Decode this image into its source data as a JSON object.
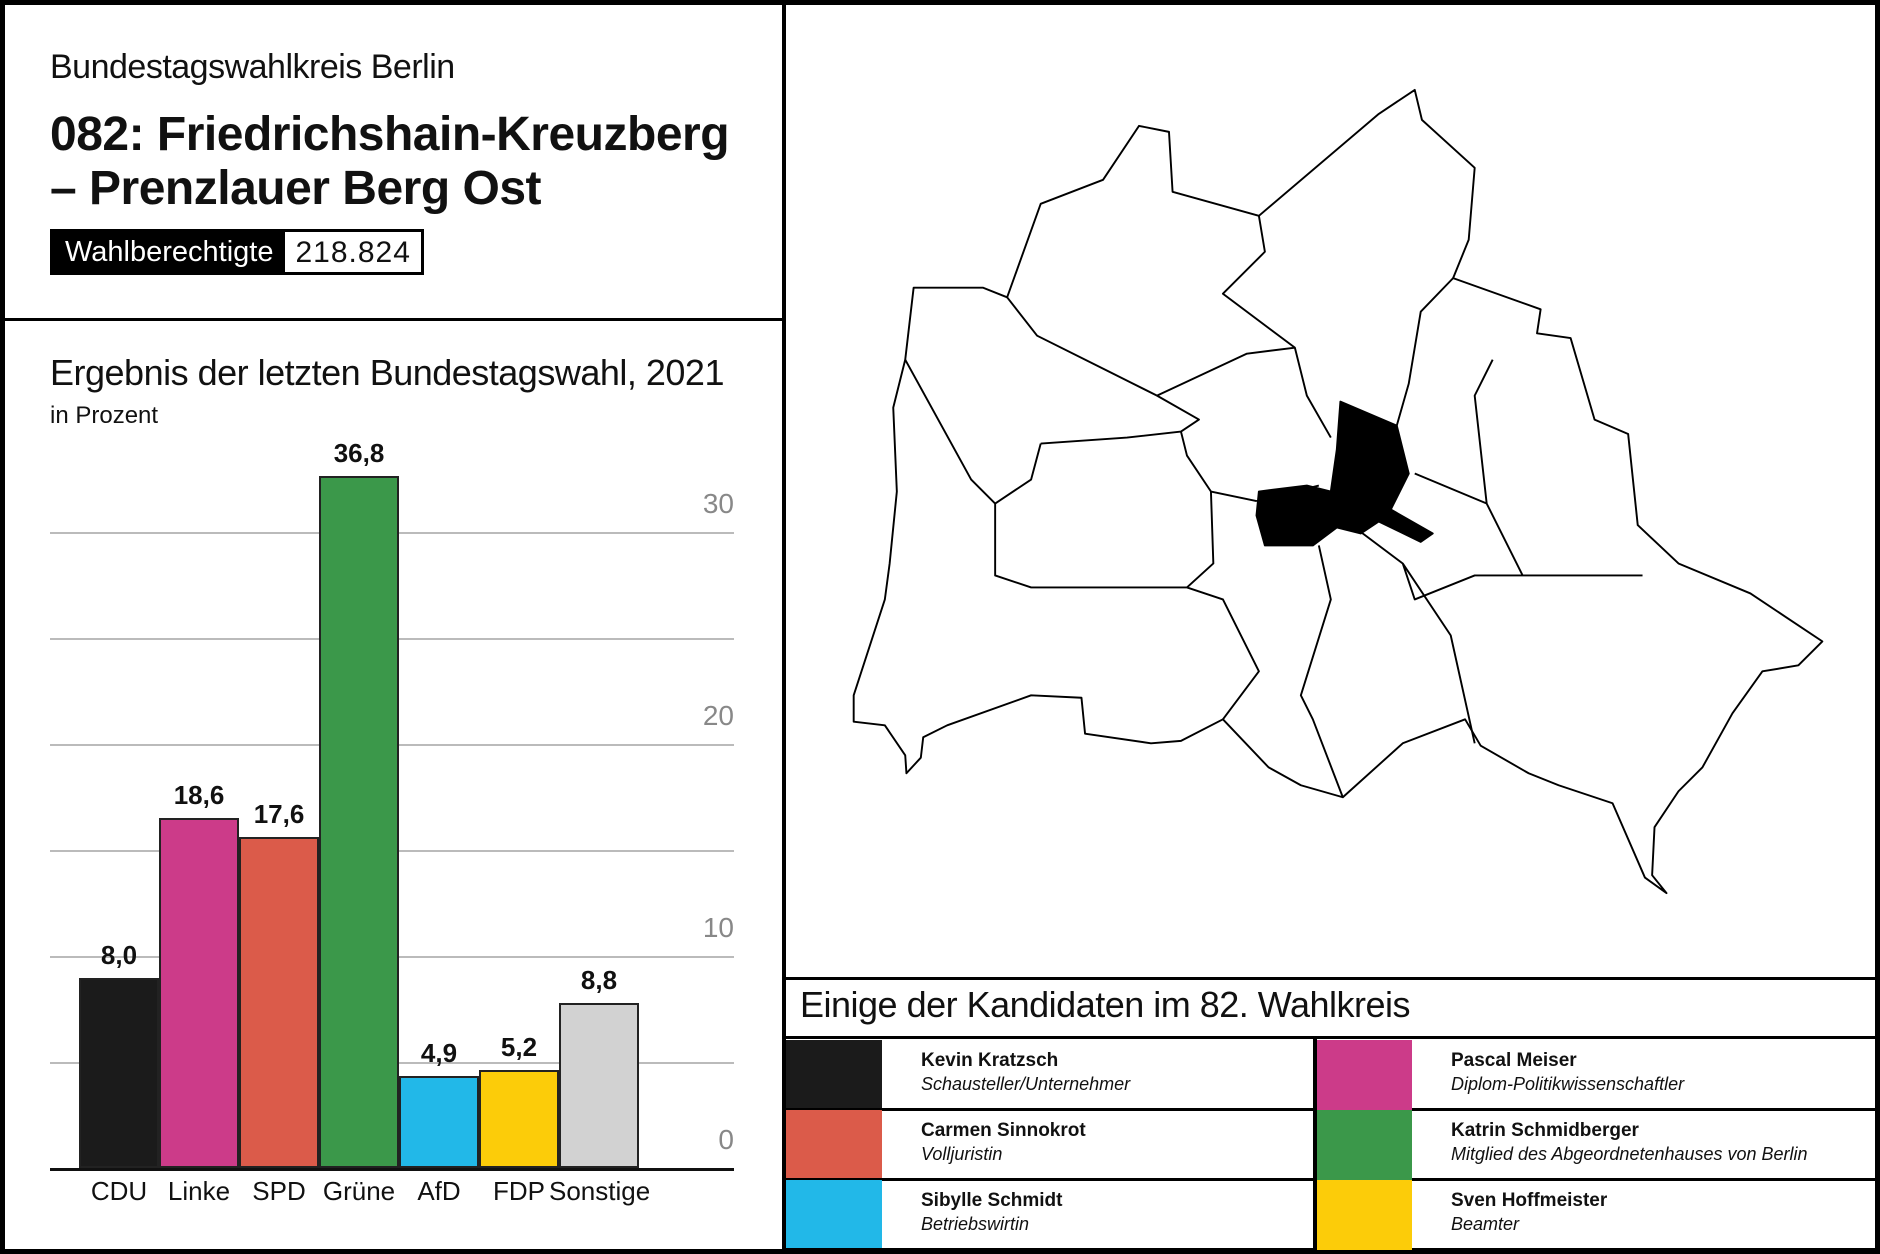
{
  "header": {
    "supertitle": "Bundestagswahlkreis Berlin",
    "title_line1": "082: Friedrichshain-Kreuzberg",
    "title_line2": "– Prenzlauer Berg Ost",
    "eligible_label": "Wahlberechtigte",
    "eligible_value": "218.824"
  },
  "chart_data": {
    "type": "bar",
    "title": "Ergebnis der letzten Bundestagswahl, 2021",
    "subtitle": "in Prozent",
    "categories": [
      "CDU",
      "Linke",
      "SPD",
      "Grüne",
      "AfD",
      "FDP",
      "Sonstige"
    ],
    "values": [
      8.0,
      18.6,
      17.6,
      36.8,
      4.9,
      5.2,
      8.8
    ],
    "value_labels": [
      "8,0",
      "18,6",
      "17,6",
      "36,8",
      "4,9",
      "5,2",
      "8,8"
    ],
    "colors": [
      "#1b1b1b",
      "#cc3b89",
      "#db5b4a",
      "#3b984a",
      "#22b8e8",
      "#fccc09",
      "#d2d2d2"
    ],
    "yticks": [
      "0",
      "10",
      "20",
      "30"
    ],
    "ylim": [
      0,
      30
    ],
    "grid": true
  },
  "candidates": {
    "title": "Einige der Kandidaten im 82. Wahlkreis",
    "items": [
      {
        "name": "Kevin Kratzsch",
        "role": "Schausteller/Unternehmer",
        "color": "#1b1b1b"
      },
      {
        "name": "Pascal Meiser",
        "role": "Diplom-Politikwissenschaftler",
        "color": "#cc3b89"
      },
      {
        "name": "Carmen Sinnokrot",
        "role": "Volljuristin",
        "color": "#db5b4a"
      },
      {
        "name": "Katrin Schmidberger",
        "role": "Mitglied des Abgeordnetenhauses von Berlin",
        "color": "#3b984a"
      },
      {
        "name": "Sibylle Schmidt",
        "role": "Betriebswirtin",
        "color": "#22b8e8"
      },
      {
        "name": "Sven Hoffmeister",
        "role": "Beamter",
        "color": "#fccc09"
      }
    ]
  }
}
